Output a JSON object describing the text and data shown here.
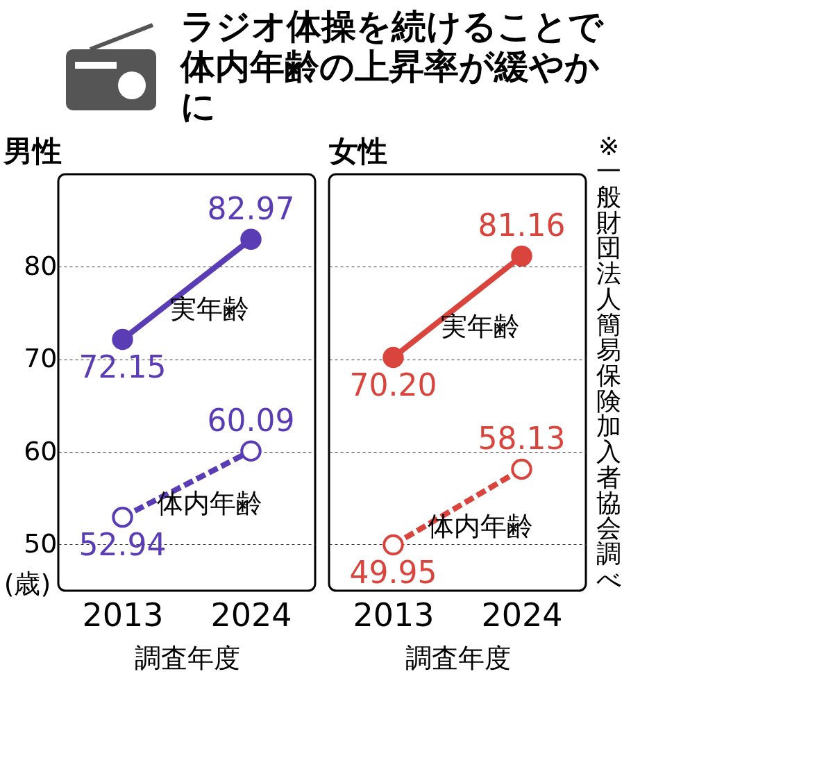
{
  "chart_data": [
    {
      "type": "line",
      "title": "ラジオ体操を続けることで体内年齢の上昇率が緩やかに",
      "subtitle": "男性",
      "xlabel": "調査年度",
      "ylabel": "(歳)",
      "categories": [
        "2013",
        "2024"
      ],
      "ylim": [
        45,
        90
      ],
      "yticks": [
        50,
        60,
        70,
        80
      ],
      "grid": "y",
      "marker": "circle",
      "series": [
        {
          "name": "実年齢",
          "color": "#5a3db5",
          "values": [
            72.15,
            82.97
          ],
          "value_labels": [
            "72.15",
            "82.97"
          ],
          "line_style": "solid"
        },
        {
          "name": "体内年齢",
          "color": "#5a3db5",
          "values": [
            52.94,
            60.09
          ],
          "value_labels": [
            "52.94",
            "60.09"
          ],
          "line_style": "dashed"
        }
      ]
    },
    {
      "type": "line",
      "subtitle": "女性",
      "xlabel": "調査年度",
      "categories": [
        "2013",
        "2024"
      ],
      "ylim": [
        45,
        90
      ],
      "yticks": [
        50,
        60,
        70,
        80
      ],
      "grid": "y",
      "marker": "circle",
      "tick_labels": "x",
      "annotations": [
        "※一般財団法人簡易保険加入者協会調べ"
      ],
      "series": [
        {
          "name": "実年齢",
          "color": "#d9453c",
          "values": [
            70.2,
            81.16
          ],
          "value_labels": [
            "70.20",
            "81.16"
          ],
          "line_style": "solid"
        },
        {
          "name": "体内年齢",
          "color": "#d9453c",
          "values": [
            49.95,
            58.13
          ],
          "value_labels": [
            "49.95",
            "58.13"
          ],
          "line_style": "dashed"
        }
      ]
    }
  ]
}
